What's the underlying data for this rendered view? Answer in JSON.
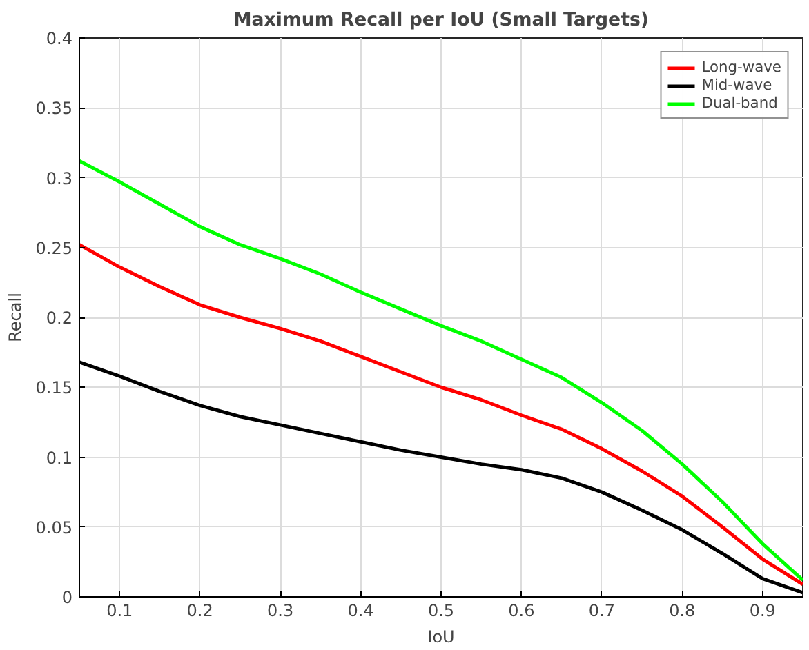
{
  "chart_data": {
    "type": "line",
    "title": "Maximum Recall per IoU (Small Targets)",
    "xlabel": "IoU",
    "ylabel": "Recall",
    "x": [
      0.05,
      0.1,
      0.15,
      0.2,
      0.25,
      0.3,
      0.35,
      0.4,
      0.45,
      0.5,
      0.55,
      0.6,
      0.65,
      0.7,
      0.75,
      0.8,
      0.85,
      0.9,
      0.95
    ],
    "series": [
      {
        "name": "Long-wave",
        "color": "#ff0000",
        "values": [
          0.252,
          0.236,
          0.222,
          0.209,
          0.2,
          0.192,
          0.183,
          0.172,
          0.161,
          0.15,
          0.141,
          0.13,
          0.12,
          0.106,
          0.09,
          0.072,
          0.05,
          0.027,
          0.009
        ]
      },
      {
        "name": "Mid-wave",
        "color": "#000000",
        "values": [
          0.168,
          0.158,
          0.147,
          0.137,
          0.129,
          0.123,
          0.117,
          0.111,
          0.105,
          0.1,
          0.095,
          0.091,
          0.085,
          0.075,
          0.062,
          0.048,
          0.031,
          0.013,
          0.003
        ]
      },
      {
        "name": "Dual-band",
        "color": "#00ff00",
        "values": [
          0.312,
          0.297,
          0.281,
          0.265,
          0.252,
          0.242,
          0.231,
          0.218,
          0.206,
          0.194,
          0.183,
          0.17,
          0.157,
          0.139,
          0.119,
          0.095,
          0.068,
          0.038,
          0.012
        ]
      }
    ],
    "xlim": [
      0.05,
      0.95
    ],
    "ylim": [
      0,
      0.4
    ],
    "xticks": [
      0.1,
      0.2,
      0.3,
      0.4,
      0.5,
      0.6,
      0.7,
      0.8,
      0.9
    ],
    "yticks": [
      0,
      0.05,
      0.1,
      0.15,
      0.2,
      0.25,
      0.3,
      0.35,
      0.4
    ],
    "grid": true,
    "legend": "top right",
    "line_style": "solid"
  }
}
